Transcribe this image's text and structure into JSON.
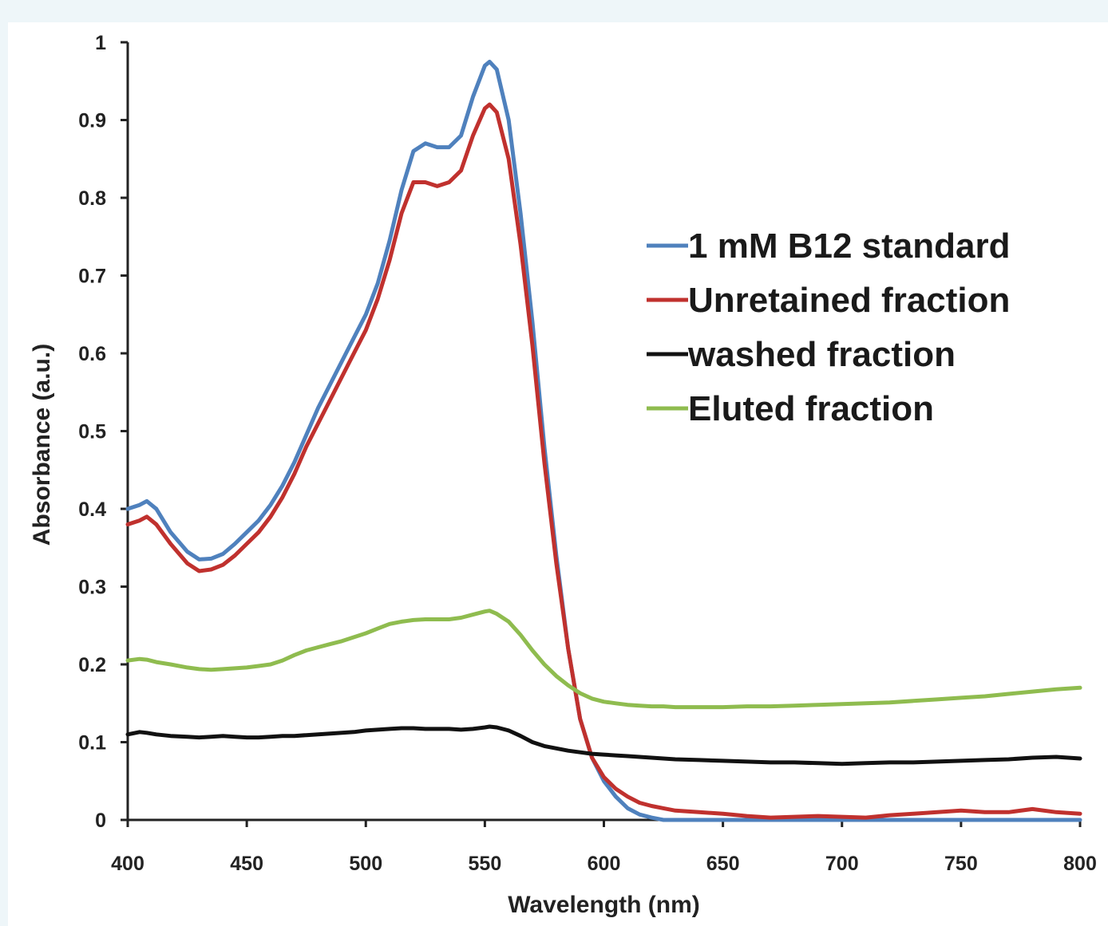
{
  "chart_data": {
    "type": "line",
    "title": "",
    "xlabel": "Wavelength (nm)",
    "ylabel": "Absorbance (a.u.)",
    "xlim": [
      400,
      800
    ],
    "ylim": [
      0,
      1
    ],
    "x_ticks": [
      "400",
      "450",
      "500",
      "550",
      "600",
      "650",
      "700",
      "750",
      "800"
    ],
    "y_ticks": [
      "0",
      "0.1",
      "0.2",
      "0.3",
      "0.4",
      "0.5",
      "0.6",
      "0.7",
      "0.8",
      "0.9",
      "1"
    ],
    "grid": false,
    "legend_position": "upper-right",
    "x": [
      400,
      405,
      408,
      412,
      418,
      425,
      430,
      435,
      440,
      445,
      450,
      455,
      460,
      465,
      470,
      475,
      480,
      485,
      490,
      495,
      500,
      505,
      510,
      515,
      520,
      525,
      530,
      535,
      540,
      545,
      550,
      552,
      555,
      560,
      565,
      570,
      575,
      580,
      585,
      590,
      595,
      600,
      605,
      610,
      615,
      620,
      625,
      630,
      640,
      650,
      660,
      670,
      680,
      690,
      700,
      710,
      720,
      730,
      740,
      750,
      760,
      770,
      780,
      790,
      800
    ],
    "series": [
      {
        "name": "1 mM B12 standard",
        "color": "#4f81bd",
        "values": [
          0.4,
          0.405,
          0.41,
          0.4,
          0.37,
          0.345,
          0.335,
          0.336,
          0.342,
          0.355,
          0.37,
          0.385,
          0.405,
          0.43,
          0.46,
          0.495,
          0.53,
          0.56,
          0.59,
          0.62,
          0.65,
          0.69,
          0.745,
          0.81,
          0.86,
          0.87,
          0.865,
          0.865,
          0.88,
          0.93,
          0.97,
          0.975,
          0.965,
          0.9,
          0.78,
          0.64,
          0.48,
          0.34,
          0.22,
          0.13,
          0.08,
          0.05,
          0.03,
          0.015,
          0.007,
          0.003,
          0.0,
          0.0,
          0.0,
          0.0,
          0.0,
          0.0,
          0.0,
          0.0,
          0.0,
          0.0,
          0.0,
          0.0,
          0.0,
          0.0,
          0.0,
          0.0,
          0.0,
          0.0,
          0.0
        ]
      },
      {
        "name": "Unretained fraction",
        "color": "#c0312e",
        "values": [
          0.38,
          0.385,
          0.39,
          0.38,
          0.355,
          0.33,
          0.32,
          0.322,
          0.328,
          0.34,
          0.355,
          0.37,
          0.39,
          0.415,
          0.445,
          0.48,
          0.51,
          0.54,
          0.57,
          0.6,
          0.63,
          0.67,
          0.72,
          0.78,
          0.82,
          0.82,
          0.815,
          0.82,
          0.835,
          0.88,
          0.915,
          0.92,
          0.91,
          0.85,
          0.74,
          0.61,
          0.46,
          0.33,
          0.22,
          0.13,
          0.08,
          0.055,
          0.04,
          0.03,
          0.022,
          0.018,
          0.015,
          0.012,
          0.01,
          0.008,
          0.005,
          0.003,
          0.004,
          0.005,
          0.004,
          0.003,
          0.006,
          0.008,
          0.01,
          0.012,
          0.01,
          0.01,
          0.014,
          0.01,
          0.008
        ]
      },
      {
        "name": "washed fraction",
        "color": "#111111",
        "values": [
          0.11,
          0.113,
          0.112,
          0.11,
          0.108,
          0.107,
          0.106,
          0.107,
          0.108,
          0.107,
          0.106,
          0.106,
          0.107,
          0.108,
          0.108,
          0.109,
          0.11,
          0.111,
          0.112,
          0.113,
          0.115,
          0.116,
          0.117,
          0.118,
          0.118,
          0.117,
          0.117,
          0.117,
          0.116,
          0.117,
          0.119,
          0.12,
          0.119,
          0.115,
          0.108,
          0.1,
          0.095,
          0.092,
          0.089,
          0.087,
          0.085,
          0.084,
          0.083,
          0.082,
          0.081,
          0.08,
          0.079,
          0.078,
          0.077,
          0.076,
          0.075,
          0.074,
          0.074,
          0.073,
          0.072,
          0.073,
          0.074,
          0.074,
          0.075,
          0.076,
          0.077,
          0.078,
          0.08,
          0.081,
          0.079
        ]
      },
      {
        "name": "Eluted fraction",
        "color": "#8fbc4f",
        "values": [
          0.205,
          0.207,
          0.206,
          0.203,
          0.2,
          0.196,
          0.194,
          0.193,
          0.194,
          0.195,
          0.196,
          0.198,
          0.2,
          0.205,
          0.212,
          0.218,
          0.222,
          0.226,
          0.23,
          0.235,
          0.24,
          0.246,
          0.252,
          0.255,
          0.257,
          0.258,
          0.258,
          0.258,
          0.26,
          0.264,
          0.268,
          0.269,
          0.265,
          0.255,
          0.238,
          0.218,
          0.2,
          0.185,
          0.173,
          0.163,
          0.156,
          0.152,
          0.15,
          0.148,
          0.147,
          0.146,
          0.146,
          0.145,
          0.145,
          0.145,
          0.146,
          0.146,
          0.147,
          0.148,
          0.149,
          0.15,
          0.151,
          0.153,
          0.155,
          0.157,
          0.159,
          0.162,
          0.165,
          0.168,
          0.17
        ]
      }
    ]
  }
}
